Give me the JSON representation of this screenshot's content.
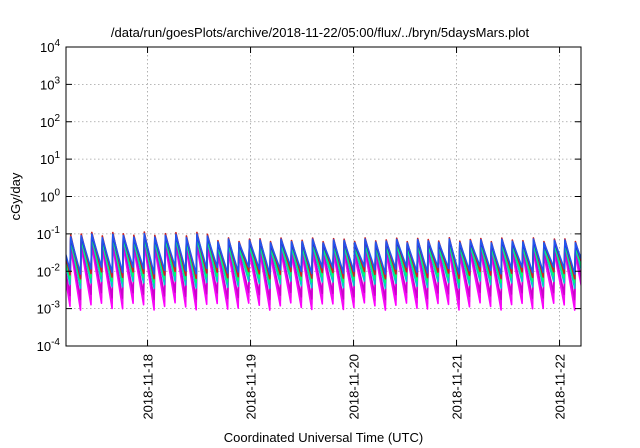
{
  "chart_data": {
    "type": "line",
    "title": "/data/run/goesPlots/archive/2018-11-22/05:00/flux/../bryn/5daysMars.plot",
    "xlabel": "Coordinated Universal Time (UTC)",
    "ylabel": "cGy/day",
    "y_scale": "log",
    "ylim": [
      0.0001,
      10000
    ],
    "y_ticks": [
      {
        "value": 0.0001,
        "base": "10",
        "exp": "-4"
      },
      {
        "value": 0.001,
        "base": "10",
        "exp": "-3"
      },
      {
        "value": 0.01,
        "base": "10",
        "exp": "-2"
      },
      {
        "value": 0.1,
        "base": "10",
        "exp": "-1"
      },
      {
        "value": 1,
        "base": "10",
        "exp": "0"
      },
      {
        "value": 10,
        "base": "10",
        "exp": "1"
      },
      {
        "value": 100,
        "base": "10",
        "exp": "2"
      },
      {
        "value": 1000,
        "base": "10",
        "exp": "3"
      },
      {
        "value": 10000,
        "base": "10",
        "exp": "4"
      }
    ],
    "xlim": [
      "2018-11-17 05:00",
      "2018-11-22 05:00"
    ],
    "x_ticks": [
      "2018-11-18",
      "2018-11-19",
      "2018-11-20",
      "2018-11-21",
      "2018-11-22"
    ],
    "grid": true,
    "pattern": {
      "sawtooth_period_hours": 2.45,
      "peak_shift_time": "2018-11-18 14:00"
    },
    "series": [
      {
        "color": "#ff00ff",
        "peak_early": 0.045,
        "peak_late": 0.03,
        "trough": 0.0013
      },
      {
        "color": "#ee0fee",
        "peak_early": 0.052,
        "peak_late": 0.035,
        "trough": 0.0018
      },
      {
        "color": "#cc00cc",
        "peak_early": 0.06,
        "peak_late": 0.04,
        "trough": 0.0025
      },
      {
        "color": "#00cccc",
        "peak_early": 0.07,
        "peak_late": 0.048,
        "trough": 0.005
      },
      {
        "color": "#00ff66",
        "peak_early": 0.075,
        "peak_late": 0.052,
        "trough": 0.007
      },
      {
        "color": "#0000ff",
        "peak_early": 0.085,
        "peak_late": 0.06,
        "trough": 0.01
      },
      {
        "color": "#cc2222",
        "peak_early": 0.1,
        "peak_late": 0.07,
        "trough": 0.009
      },
      {
        "color": "#2255ee",
        "peak_early": 0.09,
        "peak_late": 0.065,
        "trough": 0.012
      }
    ]
  }
}
